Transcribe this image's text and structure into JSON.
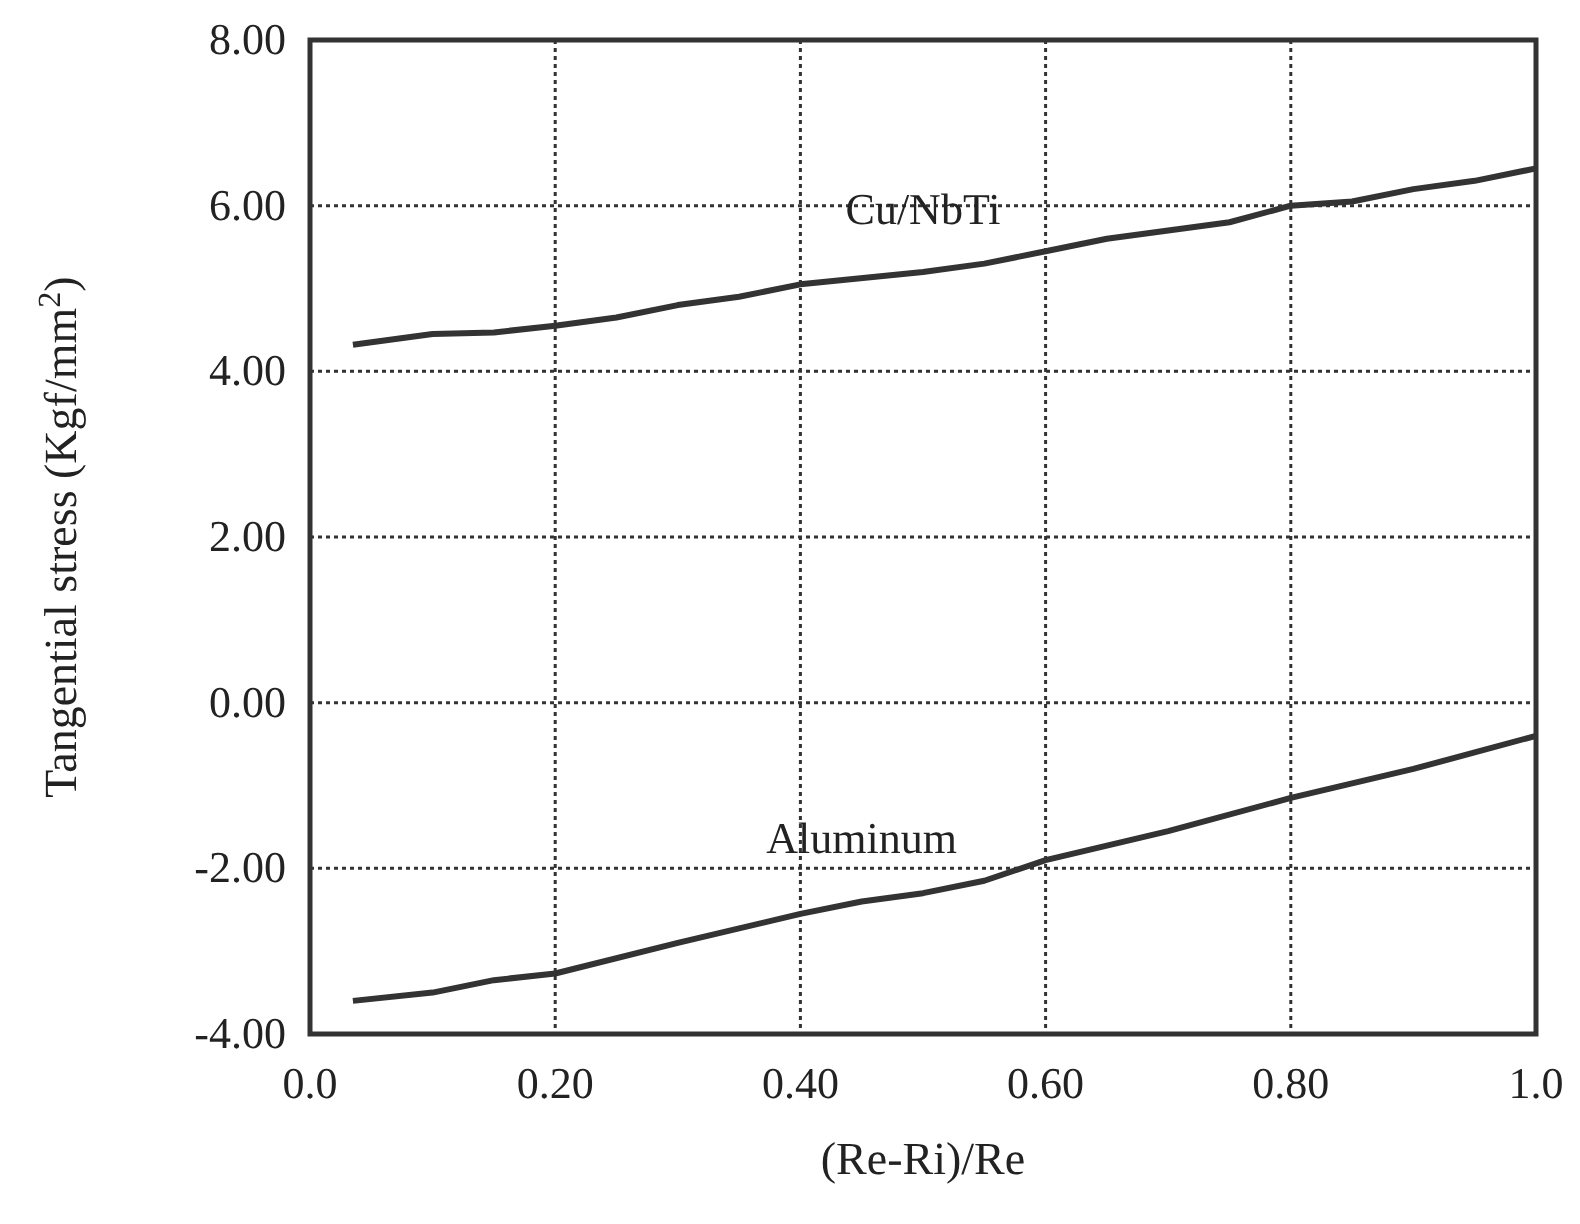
{
  "chart_data": {
    "type": "line",
    "xlabel": "(Re-Ri)/Re",
    "ylabel": "Tangential stress (Kgf/mm$^{2}$)",
    "xlim": [
      0,
      1
    ],
    "xticks": [
      {
        "value": 0,
        "label": "0.0"
      },
      {
        "value": 0.2,
        "label": "0.20"
      },
      {
        "value": 0.4,
        "label": "0.40"
      },
      {
        "value": 0.6,
        "label": "0.60"
      },
      {
        "value": 0.8,
        "label": "0.80"
      },
      {
        "value": 1,
        "label": "1.0"
      }
    ],
    "ylim": [
      -4,
      8
    ],
    "yticks": [
      {
        "value": -4,
        "label": "-4.00"
      },
      {
        "value": -2,
        "label": "-2.00"
      },
      {
        "value": 0,
        "label": "0.00"
      },
      {
        "value": 2,
        "label": "2.00"
      },
      {
        "value": 4,
        "label": "4.00"
      },
      {
        "value": 6,
        "label": "6.00"
      },
      {
        "value": 8,
        "label": "8.00"
      }
    ],
    "grid": true,
    "line_style": "solid",
    "marker": "none",
    "series": [
      {
        "name": "Cu/NbTi",
        "color": "#333333",
        "x": [
          0.035,
          0.1,
          0.15,
          0.2,
          0.25,
          0.3,
          0.35,
          0.4,
          0.5,
          0.55,
          0.6,
          0.65,
          0.7,
          0.75,
          0.8,
          0.85,
          0.9,
          0.95,
          1.0
        ],
        "values": [
          4.32,
          4.45,
          4.47,
          4.55,
          4.65,
          4.8,
          4.9,
          5.05,
          5.2,
          5.3,
          5.45,
          5.6,
          5.7,
          5.8,
          6.0,
          6.05,
          6.2,
          6.3,
          6.45
        ]
      },
      {
        "name": "Aluminum",
        "color": "#333333",
        "x": [
          0.035,
          0.1,
          0.15,
          0.2,
          0.3,
          0.4,
          0.45,
          0.5,
          0.55,
          0.6,
          0.7,
          0.8,
          0.9,
          1.0
        ],
        "values": [
          -3.6,
          -3.5,
          -3.35,
          -3.27,
          -2.9,
          -2.55,
          -2.4,
          -2.3,
          -2.15,
          -1.9,
          -1.55,
          -1.15,
          -0.8,
          -0.4
        ]
      }
    ]
  }
}
